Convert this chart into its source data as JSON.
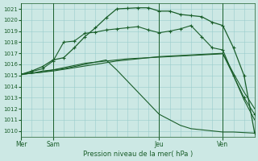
{
  "background_color": "#cce8e4",
  "grid_color": "#99cccc",
  "line_color": "#1a5e2a",
  "title": "Pression niveau de la mer( hPa )",
  "ylim": [
    1009.5,
    1021.5
  ],
  "yticks": [
    1010,
    1011,
    1012,
    1013,
    1014,
    1015,
    1016,
    1017,
    1018,
    1019,
    1020,
    1021
  ],
  "vlines_x": [
    0,
    3,
    13,
    19
  ],
  "series1_x": [
    0,
    1,
    2,
    3,
    4,
    5,
    6,
    7,
    8,
    9,
    10,
    11,
    12,
    13,
    14,
    15,
    16,
    17,
    18,
    19,
    20,
    21,
    22
  ],
  "series1_y": [
    1015.1,
    1015.2,
    1015.3,
    1015.4,
    1015.55,
    1015.7,
    1015.85,
    1016.0,
    1016.15,
    1016.3,
    1016.4,
    1016.5,
    1016.6,
    1016.7,
    1016.75,
    1016.8,
    1016.85,
    1016.9,
    1016.95,
    1017.0,
    1015.2,
    1013.5,
    1012.0
  ],
  "series2_x": [
    0,
    1,
    2,
    3,
    4,
    5,
    6,
    7,
    8,
    9,
    10,
    11,
    12,
    13,
    14,
    15,
    16,
    17,
    18,
    19,
    20,
    21,
    22
  ],
  "series2_y": [
    1015.1,
    1015.2,
    1015.3,
    1015.5,
    1015.7,
    1015.9,
    1016.1,
    1016.2,
    1016.3,
    1016.4,
    1016.5,
    1016.55,
    1016.6,
    1016.65,
    1016.7,
    1016.75,
    1016.8,
    1016.85,
    1016.9,
    1016.95,
    1015.0,
    1012.8,
    1011.0
  ],
  "series3_x": [
    0,
    1,
    2,
    3,
    4,
    5,
    6,
    7,
    8,
    9,
    10,
    11,
    12,
    13,
    14,
    15,
    16,
    17,
    18,
    19,
    20,
    21,
    22
  ],
  "series3_y": [
    1015.1,
    1015.35,
    1015.6,
    1016.3,
    1018.0,
    1018.1,
    1018.8,
    1018.9,
    1019.1,
    1019.2,
    1019.3,
    1019.4,
    1019.1,
    1018.85,
    1019.0,
    1019.2,
    1019.5,
    1018.5,
    1017.5,
    1017.3,
    1015.0,
    1013.0,
    1011.5
  ],
  "series4_x": [
    0,
    1,
    2,
    3,
    4,
    5,
    6,
    7,
    8,
    9,
    10,
    11,
    12,
    13,
    14,
    15,
    16,
    17,
    18,
    19,
    20,
    21,
    22
  ],
  "series4_y": [
    1015.1,
    1015.4,
    1015.8,
    1016.4,
    1016.6,
    1017.5,
    1018.5,
    1019.3,
    1020.2,
    1021.0,
    1021.05,
    1021.1,
    1021.1,
    1020.8,
    1020.8,
    1020.5,
    1020.4,
    1020.3,
    1019.8,
    1019.5,
    1017.5,
    1015.0,
    1009.8
  ],
  "series5_x": [
    0,
    1,
    2,
    3,
    4,
    5,
    6,
    7,
    8,
    9,
    10,
    11,
    12,
    13,
    14,
    15,
    16,
    17,
    18,
    19,
    20,
    21,
    22
  ],
  "series5_y": [
    1015.1,
    1015.2,
    1015.4,
    1015.5,
    1015.6,
    1015.8,
    1016.0,
    1016.2,
    1016.4,
    1015.5,
    1014.5,
    1013.5,
    1012.5,
    1011.5,
    1011.0,
    1010.5,
    1010.2,
    1010.1,
    1010.0,
    1009.9,
    1009.9,
    1009.85,
    1009.8
  ]
}
